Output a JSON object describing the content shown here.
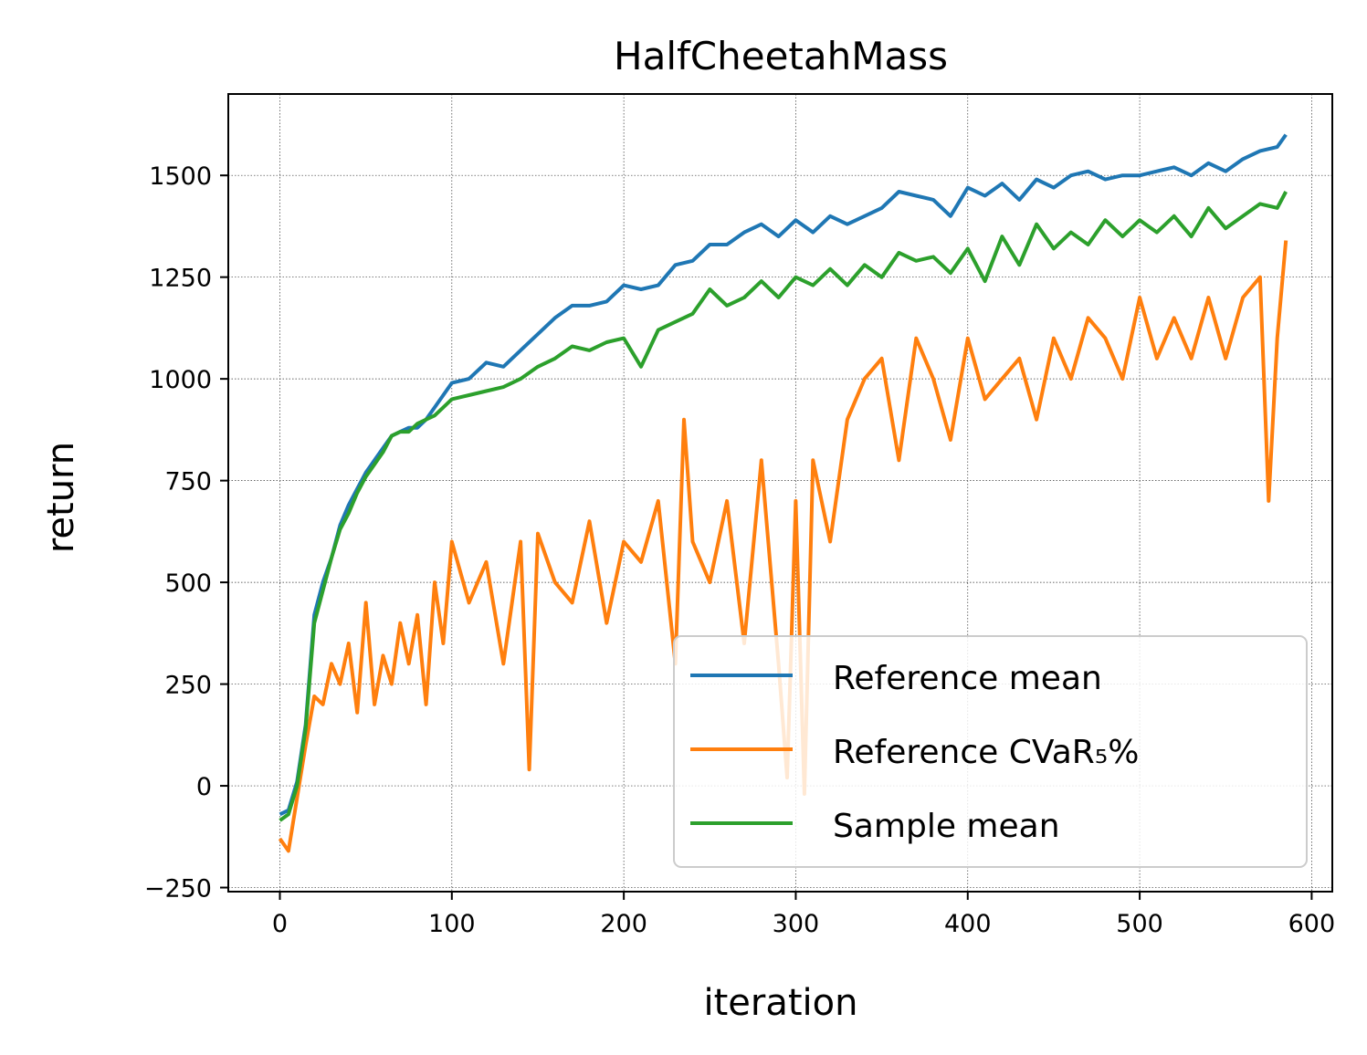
{
  "chart_data": {
    "type": "line",
    "title": "HalfCheetahMass",
    "xlabel": "iteration",
    "ylabel": "return",
    "xlim": [
      -30,
      612
    ],
    "ylim": [
      -260,
      1700
    ],
    "x_ticks": [
      0,
      100,
      200,
      300,
      400,
      500,
      600
    ],
    "y_ticks": [
      -250,
      0,
      250,
      500,
      750,
      1000,
      1250,
      1500
    ],
    "y_tick_labels": [
      "−250",
      "0",
      "250",
      "500",
      "750",
      "1000",
      "1250",
      "1500"
    ],
    "grid": true,
    "legend": "lower-right",
    "series": [
      {
        "name": "Reference mean",
        "color": "#1f77b4",
        "x": [
          0,
          5,
          10,
          15,
          20,
          25,
          30,
          35,
          40,
          45,
          50,
          55,
          60,
          65,
          70,
          75,
          80,
          85,
          90,
          95,
          100,
          110,
          120,
          130,
          140,
          150,
          160,
          170,
          180,
          190,
          200,
          210,
          220,
          230,
          240,
          250,
          260,
          270,
          280,
          290,
          300,
          310,
          320,
          330,
          340,
          350,
          360,
          370,
          380,
          390,
          400,
          410,
          420,
          430,
          440,
          450,
          460,
          470,
          480,
          490,
          500,
          510,
          520,
          530,
          540,
          550,
          560,
          570,
          580,
          585
        ],
        "values": [
          -70,
          -60,
          10,
          150,
          420,
          500,
          560,
          640,
          690,
          730,
          770,
          800,
          830,
          860,
          870,
          880,
          880,
          900,
          930,
          960,
          990,
          1000,
          1040,
          1030,
          1070,
          1110,
          1150,
          1180,
          1180,
          1190,
          1230,
          1220,
          1230,
          1280,
          1290,
          1330,
          1330,
          1360,
          1380,
          1350,
          1390,
          1360,
          1400,
          1380,
          1400,
          1420,
          1460,
          1450,
          1440,
          1400,
          1470,
          1450,
          1480,
          1440,
          1490,
          1470,
          1500,
          1510,
          1490,
          1500,
          1500,
          1510,
          1520,
          1500,
          1530,
          1510,
          1540,
          1560,
          1570,
          1600
        ]
      },
      {
        "name": "Reference CVaR₅%",
        "color": "#ff7f0e",
        "x": [
          0,
          5,
          10,
          15,
          20,
          25,
          30,
          35,
          40,
          45,
          50,
          55,
          60,
          65,
          70,
          75,
          80,
          85,
          90,
          95,
          100,
          110,
          120,
          130,
          140,
          145,
          150,
          160,
          170,
          180,
          190,
          200,
          210,
          220,
          230,
          235,
          240,
          250,
          260,
          270,
          280,
          290,
          295,
          300,
          305,
          310,
          320,
          330,
          340,
          350,
          360,
          370,
          380,
          390,
          400,
          410,
          420,
          430,
          440,
          450,
          460,
          470,
          480,
          490,
          500,
          510,
          520,
          530,
          540,
          550,
          560,
          570,
          575,
          580,
          585
        ],
        "values": [
          -130,
          -160,
          -30,
          100,
          220,
          200,
          300,
          250,
          350,
          180,
          450,
          200,
          320,
          250,
          400,
          300,
          420,
          200,
          500,
          350,
          600,
          450,
          550,
          300,
          600,
          40,
          620,
          500,
          450,
          650,
          400,
          600,
          550,
          700,
          300,
          900,
          600,
          500,
          700,
          350,
          800,
          300,
          20,
          700,
          -20,
          800,
          600,
          900,
          1000,
          1050,
          800,
          1100,
          1000,
          850,
          1100,
          950,
          1000,
          1050,
          900,
          1100,
          1000,
          1150,
          1100,
          1000,
          1200,
          1050,
          1150,
          1050,
          1200,
          1050,
          1200,
          1250,
          700,
          1100,
          1340
        ]
      },
      {
        "name": "Sample mean",
        "color": "#2ca02c",
        "x": [
          0,
          5,
          10,
          15,
          20,
          25,
          30,
          35,
          40,
          45,
          50,
          55,
          60,
          65,
          70,
          75,
          80,
          85,
          90,
          95,
          100,
          110,
          120,
          130,
          140,
          150,
          160,
          170,
          180,
          190,
          200,
          210,
          220,
          230,
          240,
          250,
          260,
          270,
          280,
          290,
          300,
          310,
          320,
          330,
          340,
          350,
          360,
          370,
          380,
          390,
          400,
          410,
          420,
          430,
          440,
          450,
          460,
          470,
          480,
          490,
          500,
          510,
          520,
          530,
          540,
          550,
          560,
          570,
          580,
          585
        ],
        "values": [
          -85,
          -70,
          0,
          140,
          400,
          480,
          560,
          630,
          670,
          720,
          760,
          790,
          820,
          860,
          870,
          870,
          890,
          900,
          910,
          930,
          950,
          960,
          970,
          980,
          1000,
          1030,
          1050,
          1080,
          1070,
          1090,
          1100,
          1030,
          1120,
          1140,
          1160,
          1220,
          1180,
          1200,
          1240,
          1200,
          1250,
          1230,
          1270,
          1230,
          1280,
          1250,
          1310,
          1290,
          1300,
          1260,
          1320,
          1240,
          1350,
          1280,
          1380,
          1320,
          1360,
          1330,
          1390,
          1350,
          1390,
          1360,
          1400,
          1350,
          1420,
          1370,
          1400,
          1430,
          1420,
          1460
        ]
      }
    ]
  }
}
